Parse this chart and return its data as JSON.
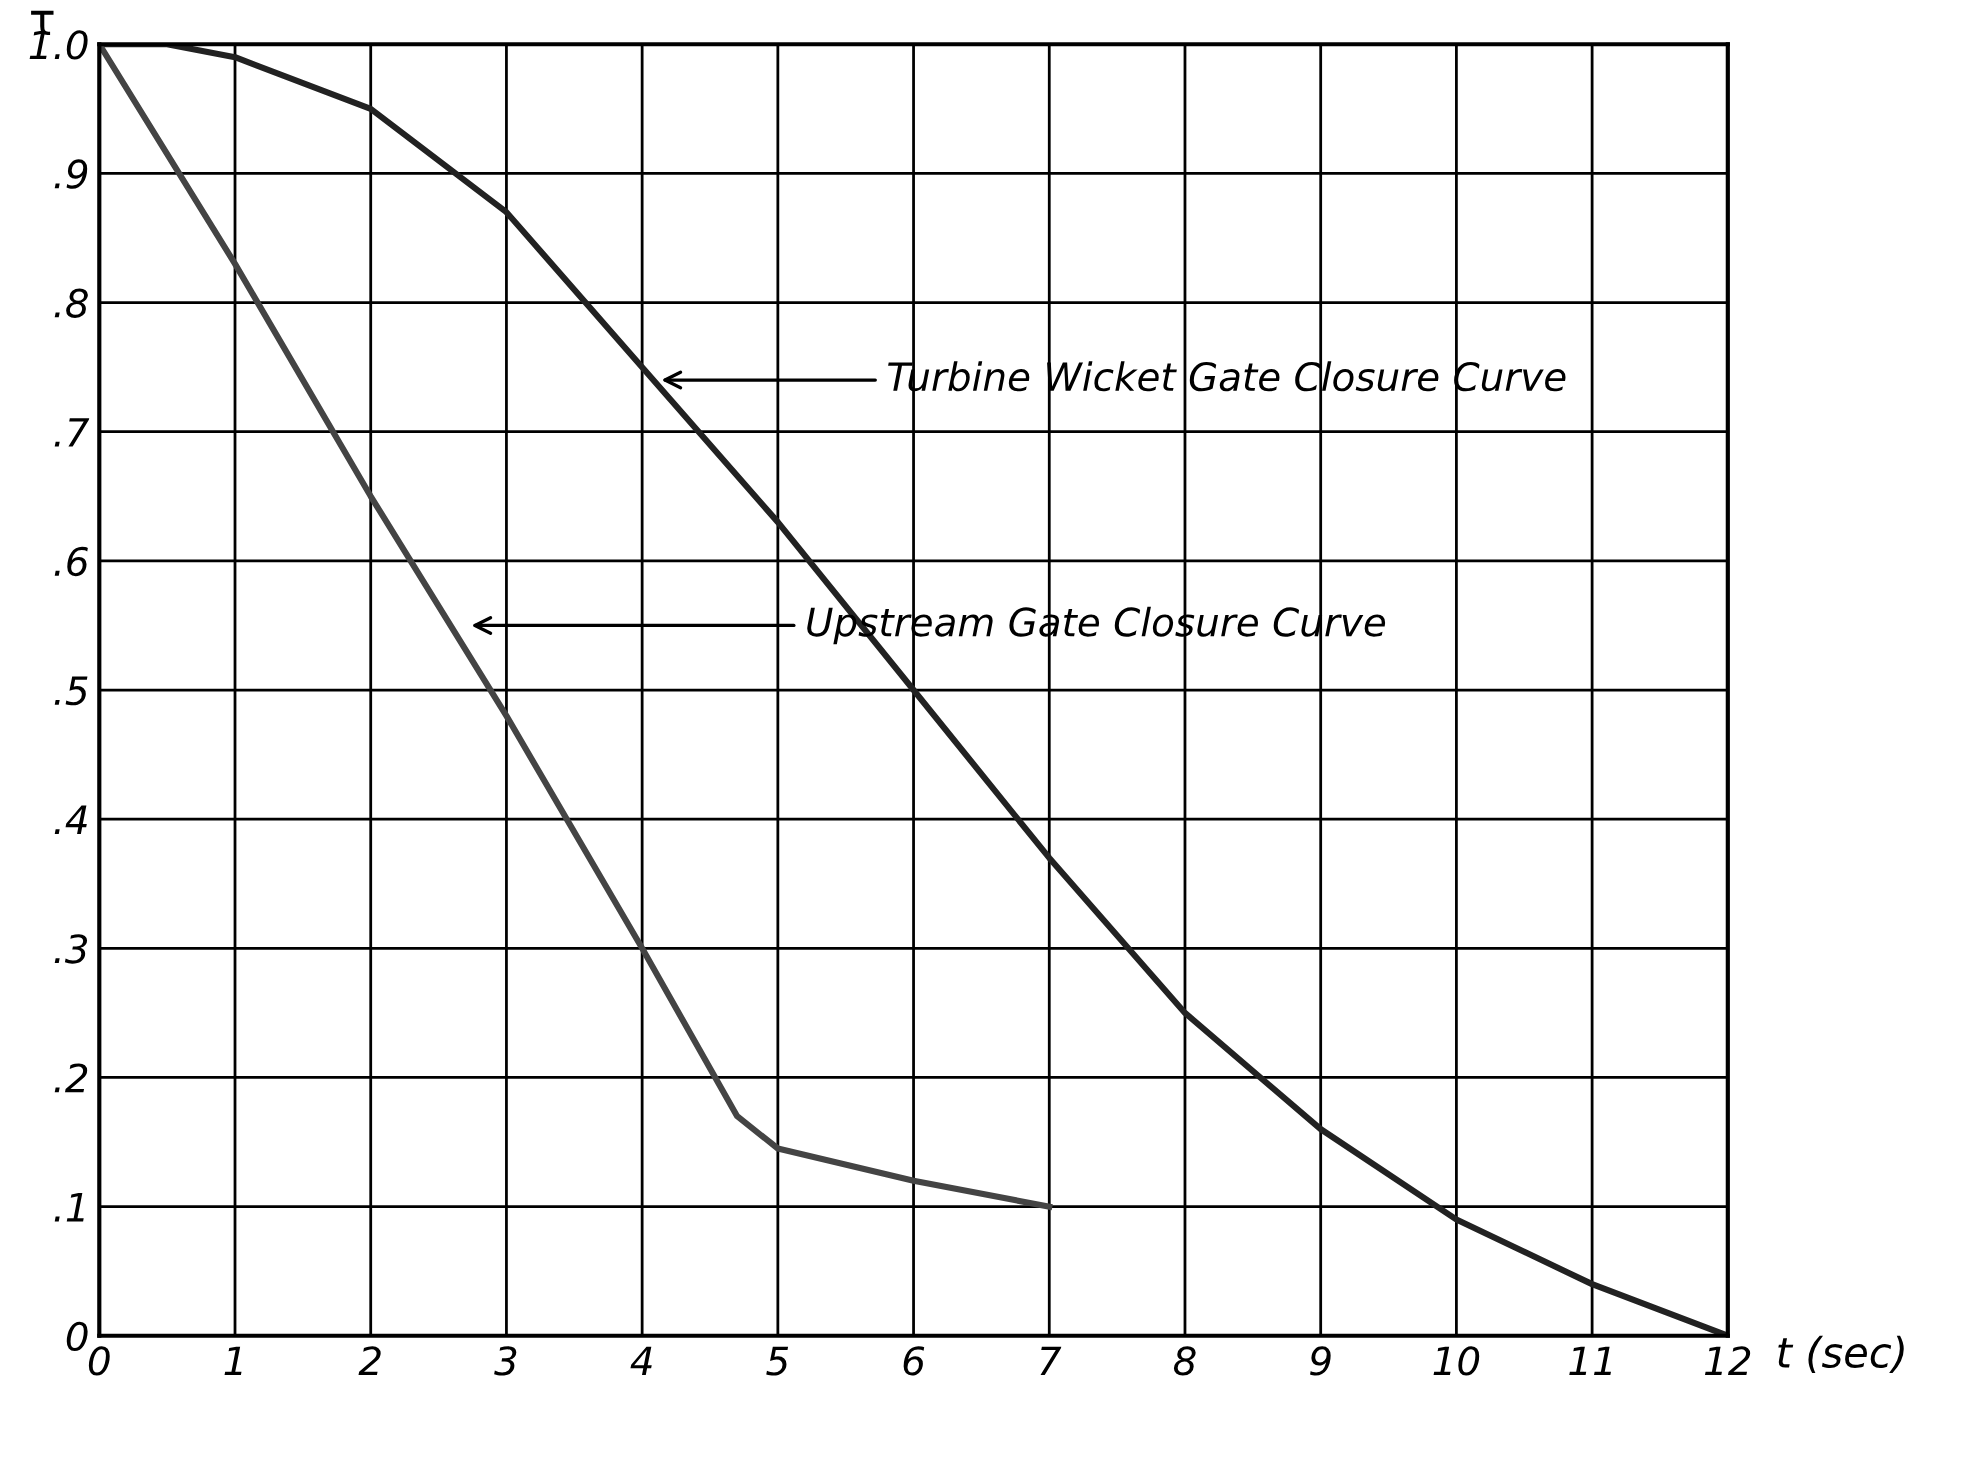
{
  "chart_data": {
    "type": "line",
    "xlabel": "t (sec)",
    "ylabel": "τ",
    "series": [
      {
        "color": "#222222",
        "x": [
          0,
          0.5,
          1,
          2,
          3,
          4,
          5,
          6,
          7,
          8,
          9,
          10,
          11,
          12
        ],
        "values": [
          1.0,
          1.0,
          0.99,
          0.95,
          0.87,
          0.75,
          0.63,
          0.5,
          0.37,
          0.25,
          0.16,
          0.09,
          0.04,
          0.0
        ]
      },
      {
        "color": "#444444",
        "x": [
          0,
          1,
          2,
          3,
          4,
          4.7,
          5,
          6,
          7
        ],
        "values": [
          1.0,
          0.83,
          0.65,
          0.48,
          0.3,
          0.17,
          0.145,
          0.12,
          0.1
        ]
      }
    ],
    "annotations": [
      {
        "text": "Turbine Wicket Gate Closure Curve",
        "x": 4.1,
        "y": 0.74
      },
      {
        "text": "Upstream Gate Closure Curve",
        "x": 2.7,
        "y": 0.55
      }
    ],
    "xlim": [
      0,
      12
    ],
    "ylim": [
      0,
      1.0
    ],
    "xticks": [
      0,
      1,
      2,
      3,
      4,
      5,
      6,
      7,
      8,
      9,
      10,
      11,
      12
    ],
    "yticks": [
      0,
      {
        "value": 0.1,
        "label": ".1"
      },
      {
        "value": 0.2,
        "label": ".2"
      },
      {
        "value": 0.3,
        "label": ".3"
      },
      {
        "value": 0.4,
        "label": ".4"
      },
      {
        "value": 0.5,
        "label": ".5"
      },
      {
        "value": 0.6,
        "label": ".6"
      },
      {
        "value": 0.7,
        "label": ".7"
      },
      {
        "value": 0.8,
        "label": ".8"
      },
      {
        "value": 0.9,
        "label": ".9"
      },
      {
        "value": 1.0,
        "label": "1.0"
      }
    ],
    "grid": true,
    "marker": "none",
    "line_style": "solid"
  }
}
